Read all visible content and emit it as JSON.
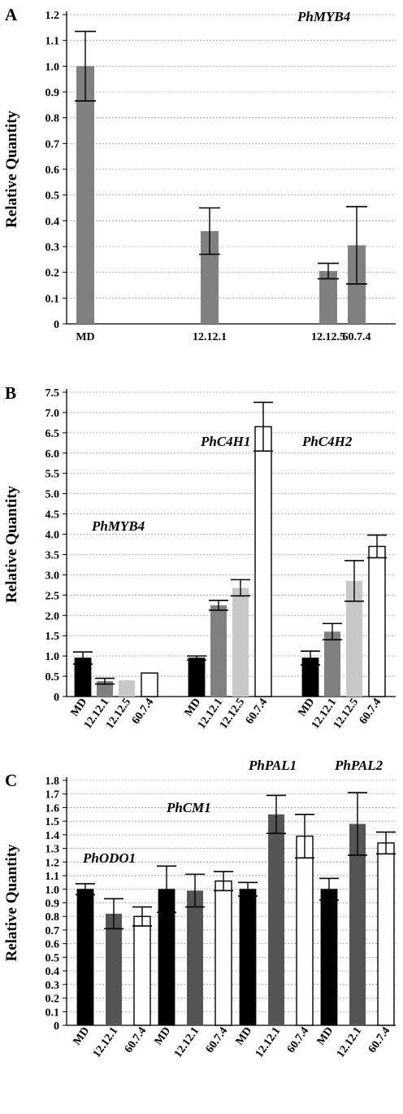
{
  "chart_data": [
    {
      "type": "bar",
      "panel_label": "A",
      "ylabel": "Relative Quantity",
      "ylim": [
        0,
        1.2
      ],
      "yticks": [
        "0",
        "0.1",
        "0.2",
        "0.3",
        "0.4",
        "0.5",
        "0.6",
        "0.7",
        "0.8",
        "0.9",
        "1.0",
        "1.1",
        "1.2"
      ],
      "grid": true,
      "gene_labels": [
        "PhMYB4"
      ],
      "groups": [
        {
          "categories": [
            "MD",
            "12.12.1",
            "12.12.5",
            "60.7.4"
          ],
          "values": [
            1.0,
            0.36,
            0.205,
            0.305
          ],
          "errors": [
            0.135,
            0.09,
            0.03,
            0.15
          ],
          "colors": [
            "#808080",
            "#808080",
            "#808080",
            "#808080"
          ]
        }
      ]
    },
    {
      "type": "bar",
      "panel_label": "B",
      "ylabel": "Relative Quantity",
      "ylim": [
        0,
        7.5
      ],
      "yticks": [
        "0",
        "0.5",
        "1.0",
        "1.5",
        "2.0",
        "2.5",
        "3.0",
        "3.5",
        "4.0",
        "4.5",
        "5.0",
        "5.5",
        "6.0",
        "6.5",
        "7.0",
        "7.5"
      ],
      "grid": true,
      "gene_labels": [
        "PhMYB4",
        "PhC4H1",
        "PhC4H2"
      ],
      "groups": [
        {
          "categories": [
            "MD",
            "12.12.1",
            "12.12.5",
            "60.7.4"
          ],
          "values": [
            0.95,
            0.38,
            0.4,
            0.58
          ],
          "errors": [
            0.15,
            0.07,
            0.0,
            0.0
          ],
          "colors": [
            "#000000",
            "#808080",
            "#c8c8c8",
            "#ffffff"
          ]
        },
        {
          "categories": [
            "MD",
            "12.12.1",
            "12.12.5",
            "60.7.4"
          ],
          "values": [
            0.95,
            2.25,
            2.68,
            6.65
          ],
          "errors": [
            0.05,
            0.12,
            0.2,
            0.6
          ],
          "colors": [
            "#000000",
            "#808080",
            "#c8c8c8",
            "#ffffff"
          ]
        },
        {
          "categories": [
            "MD",
            "12.12.1",
            "12.12.5",
            "60.7.4"
          ],
          "values": [
            0.95,
            1.6,
            2.85,
            3.7
          ],
          "errors": [
            0.17,
            0.2,
            0.5,
            0.28
          ],
          "colors": [
            "#000000",
            "#808080",
            "#c8c8c8",
            "#ffffff"
          ]
        }
      ]
    },
    {
      "type": "bar",
      "panel_label": "C",
      "ylabel": "Relative Quantity",
      "ylim": [
        0,
        1.8
      ],
      "yticks": [
        "0",
        "0.1",
        "0.2",
        "0.3",
        "0.4",
        "0.5",
        "0.6",
        "0.7",
        "0.8",
        "0.9",
        "1.0",
        "1.1",
        "1.2",
        "1.3",
        "1.4",
        "1.5",
        "1.6",
        "1.7",
        "1.8"
      ],
      "grid": true,
      "gene_labels": [
        "PhODO1",
        "PhCM1",
        "PhPAL1",
        "PhPAL2"
      ],
      "groups": [
        {
          "categories": [
            "MD",
            "12.12.1",
            "60.7.4"
          ],
          "values": [
            1.0,
            0.82,
            0.8
          ],
          "errors": [
            0.04,
            0.11,
            0.07
          ],
          "colors": [
            "#000000",
            "#555555",
            "#ffffff"
          ]
        },
        {
          "categories": [
            "MD",
            "12.12.1",
            "60.7.4"
          ],
          "values": [
            1.0,
            0.99,
            1.06
          ],
          "errors": [
            0.17,
            0.12,
            0.07
          ],
          "colors": [
            "#000000",
            "#555555",
            "#ffffff"
          ]
        },
        {
          "categories": [
            "MD",
            "12.12.1",
            "60.7.4"
          ],
          "values": [
            1.0,
            1.55,
            1.39
          ],
          "errors": [
            0.05,
            0.14,
            0.16
          ],
          "colors": [
            "#000000",
            "#555555",
            "#ffffff"
          ]
        },
        {
          "categories": [
            "MD",
            "12.12.1",
            "60.7.4"
          ],
          "values": [
            1.0,
            1.48,
            1.34
          ],
          "errors": [
            0.08,
            0.23,
            0.08
          ],
          "colors": [
            "#000000",
            "#555555",
            "#ffffff"
          ]
        }
      ]
    }
  ]
}
